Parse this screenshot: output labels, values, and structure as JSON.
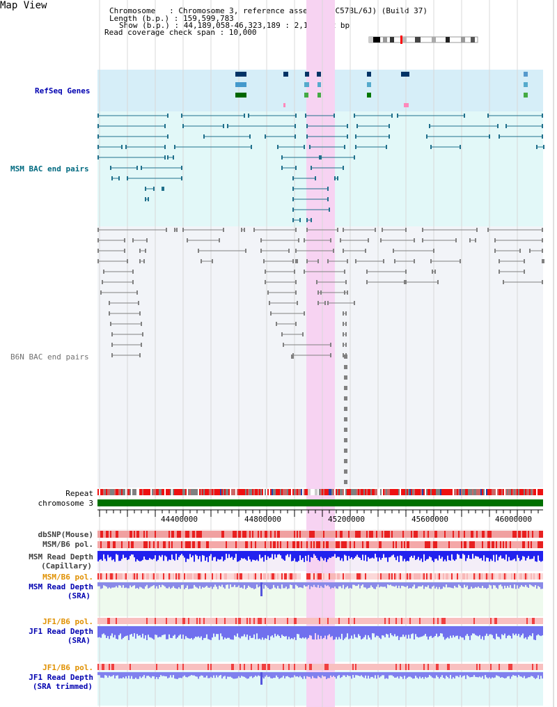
{
  "header": {
    "title": "Map View",
    "chromosome_line": "Chromosome   : Chromosome 3, reference assembly (C57BL/6J) (Build 37)",
    "length_line": "Length (b.p.) : 159,599,783",
    "show_line": "Show (b.p.) : 44,189,058-46,323,189 : 2,134,132 bp",
    "coverage_line": "Read coverage check span : 10,000"
  },
  "tracks": {
    "refseq": "RefSeq Genes",
    "msm_bac": "MSM BAC end pairs",
    "b6n_bac": "B6N BAC end pairs",
    "repeat": "Repeat",
    "chromosome": "chromosome 3",
    "dbsnp": "dbSNP(Mouse)",
    "msm_b6_pol_1": "MSM/B6 pol.",
    "msm_depth_cap_1": "MSM Read Depth",
    "msm_depth_cap_2": "(Capillary)",
    "msm_b6_pol_2": "MSM/B6 pol.",
    "msm_depth_sra_1": "MSM Read Depth",
    "msm_depth_sra_2": "(SRA)",
    "jf1_b6_pol_1": "JF1/B6 pol.",
    "jf1_depth_sra_1": "JF1 Read Depth",
    "jf1_depth_sra_2": "(SRA)",
    "jf1_b6_pol_2": "JF1/B6 pol.",
    "jf1_depth_trim_1": "JF1 Read Depth",
    "jf1_depth_trim_2": "(SRA trimmed)"
  },
  "axis": {
    "ticks": [
      "44400000",
      "44800000",
      "45200000",
      "45600000",
      "46000000"
    ]
  },
  "colors": {
    "refseq_bg": "#d6eef8",
    "msm_bg": "#e2f8f8",
    "b6n_bg": "#f2f4f8",
    "highlight": "#f7d3f2",
    "msm_feature": "#1f6f8b",
    "b6n_feature": "#808080",
    "chrom_bar": "#007000",
    "label_blue": "#0000b0",
    "label_teal": "#006a80",
    "label_gray": "#707070",
    "label_orange": "#e09000"
  }
}
